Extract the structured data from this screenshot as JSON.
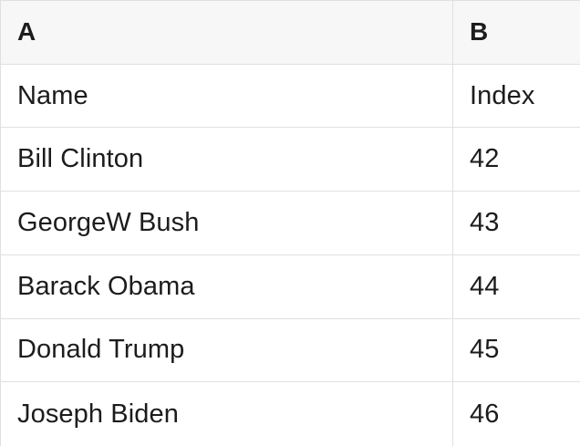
{
  "spreadsheet": {
    "columns": [
      {
        "letter": "A",
        "field": "Name"
      },
      {
        "letter": "B",
        "field": "Index"
      }
    ],
    "rows": [
      {
        "name": "Bill Clinton",
        "index": "42"
      },
      {
        "name": "GeorgeW Bush",
        "index": "43"
      },
      {
        "name": "Barack Obama",
        "index": "44"
      },
      {
        "name": "Donald Trump",
        "index": "45"
      },
      {
        "name": "Joseph Biden",
        "index": "46"
      }
    ],
    "colors": {
      "header_bg": "#f7f7f7",
      "border": "#e0e0e0",
      "text": "#1c1c1c"
    }
  }
}
